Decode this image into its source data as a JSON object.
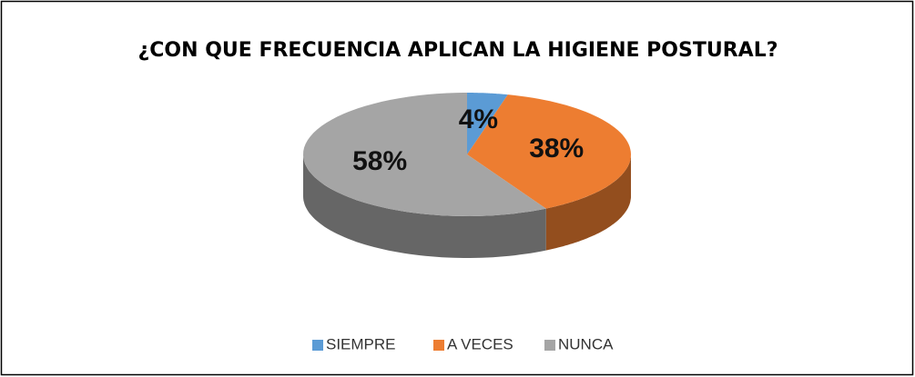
{
  "chart_data": {
    "type": "pie",
    "title": "¿CON QUE FRECUENCIA APLICAN LA HIGIENE POSTURAL?",
    "categories": [
      "SIEMPRE",
      "A VECES",
      "NUNCA"
    ],
    "values": [
      4,
      38,
      58
    ],
    "value_labels": [
      "4%",
      "38%",
      "58%"
    ],
    "colors": [
      "#5b9bd5",
      "#ed7d31",
      "#a5a5a5"
    ],
    "legend": "bottom"
  }
}
